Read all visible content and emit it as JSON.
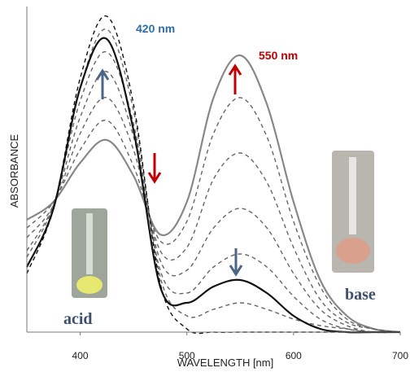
{
  "chart_data": {
    "type": "line",
    "x_label": "WAVELENGTH [nm]",
    "y_label": "ABSORBANCE",
    "annotations": [
      "420 nm",
      "550 nm",
      "acid",
      "base"
    ],
    "x": [
      350,
      375,
      400,
      425,
      450,
      475,
      500,
      525,
      550,
      575,
      600,
      625,
      650,
      675,
      700
    ],
    "xlim": [
      350,
      700
    ],
    "xticks": [
      400,
      500,
      600,
      700
    ],
    "ylim": [
      0,
      1
    ],
    "series": [
      {
        "color": "#888888",
        "style": "solid",
        "values": [
          0.345,
          0.4,
          0.52,
          0.59,
          0.48,
          0.3,
          0.4,
          0.72,
          0.85,
          0.7,
          0.4,
          0.16,
          0.05,
          0.01,
          0
        ]
      },
      {
        "color": "#666666",
        "style": "dashed",
        "values": [
          0.32,
          0.4,
          0.56,
          0.65,
          0.51,
          0.28,
          0.34,
          0.61,
          0.72,
          0.6,
          0.34,
          0.14,
          0.04,
          0.01,
          0
        ]
      },
      {
        "color": "#666666",
        "style": "dashed",
        "values": [
          0.29,
          0.39,
          0.61,
          0.72,
          0.56,
          0.25,
          0.26,
          0.47,
          0.55,
          0.46,
          0.26,
          0.1,
          0.03,
          0.01,
          0
        ]
      },
      {
        "color": "#666666",
        "style": "dashed",
        "values": [
          0.25,
          0.39,
          0.66,
          0.8,
          0.6,
          0.22,
          0.19,
          0.32,
          0.38,
          0.32,
          0.18,
          0.07,
          0.02,
          0,
          0
        ]
      },
      {
        "color": "#666666",
        "style": "dashed",
        "values": [
          0.23,
          0.39,
          0.71,
          0.86,
          0.64,
          0.19,
          0.12,
          0.2,
          0.24,
          0.2,
          0.11,
          0.04,
          0.01,
          0,
          0
        ]
      },
      {
        "color": "#666666",
        "style": "dashed",
        "values": [
          0.2,
          0.38,
          0.75,
          0.93,
          0.68,
          0.17,
          0.05,
          0.07,
          0.09,
          0.07,
          0.04,
          0.02,
          0.01,
          0,
          0
        ]
      },
      {
        "color": "#111111",
        "style": "dashed",
        "values": [
          0.18,
          0.38,
          0.78,
          0.97,
          0.7,
          0.15,
          0.01,
          0,
          0,
          0,
          0,
          0,
          0,
          0,
          0
        ]
      },
      {
        "color": "#111111",
        "style": "solid",
        "values": [
          0.2,
          0.38,
          0.75,
          0.9,
          0.62,
          0.14,
          0.09,
          0.14,
          0.16,
          0.12,
          0.05,
          0.01,
          0,
          0,
          0
        ]
      }
    ]
  }
}
